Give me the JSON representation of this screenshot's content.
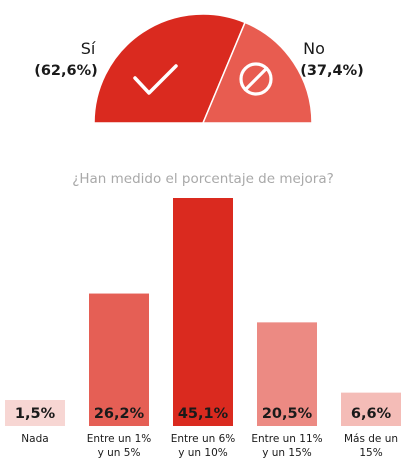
{
  "chart_data": [
    {
      "type": "pie",
      "shape": "semicircle",
      "slices": [
        {
          "label": "Sí",
          "display_value": "(62,6%)",
          "value": 62.6,
          "color": "#da2a1f",
          "icon": "check-icon"
        },
        {
          "label": "No",
          "display_value": "(37,4%)",
          "value": 37.4,
          "color": "#e85c50",
          "icon": "prohibited-icon"
        }
      ]
    },
    {
      "type": "bar",
      "title": "¿Han medido el porcentaje de mejora?",
      "categories": [
        [
          "Nada"
        ],
        [
          "Entre un 1%",
          "y un 5%"
        ],
        [
          "Entre un 6%",
          "y un 10%"
        ],
        [
          "Entre un 11%",
          "y un 15%"
        ],
        [
          "Más de un",
          "15%"
        ]
      ],
      "value_labels": [
        "1,5%",
        "26,2%",
        "45,1%",
        "20,5%",
        "6,6%"
      ],
      "values": [
        1.5,
        26.2,
        45.1,
        20.5,
        6.6
      ],
      "colors": [
        "#f7d6d3",
        "#e55f55",
        "#da2a1f",
        "#ec8a83",
        "#f4bcb7"
      ],
      "ylim": [
        0,
        45.1
      ]
    }
  ]
}
